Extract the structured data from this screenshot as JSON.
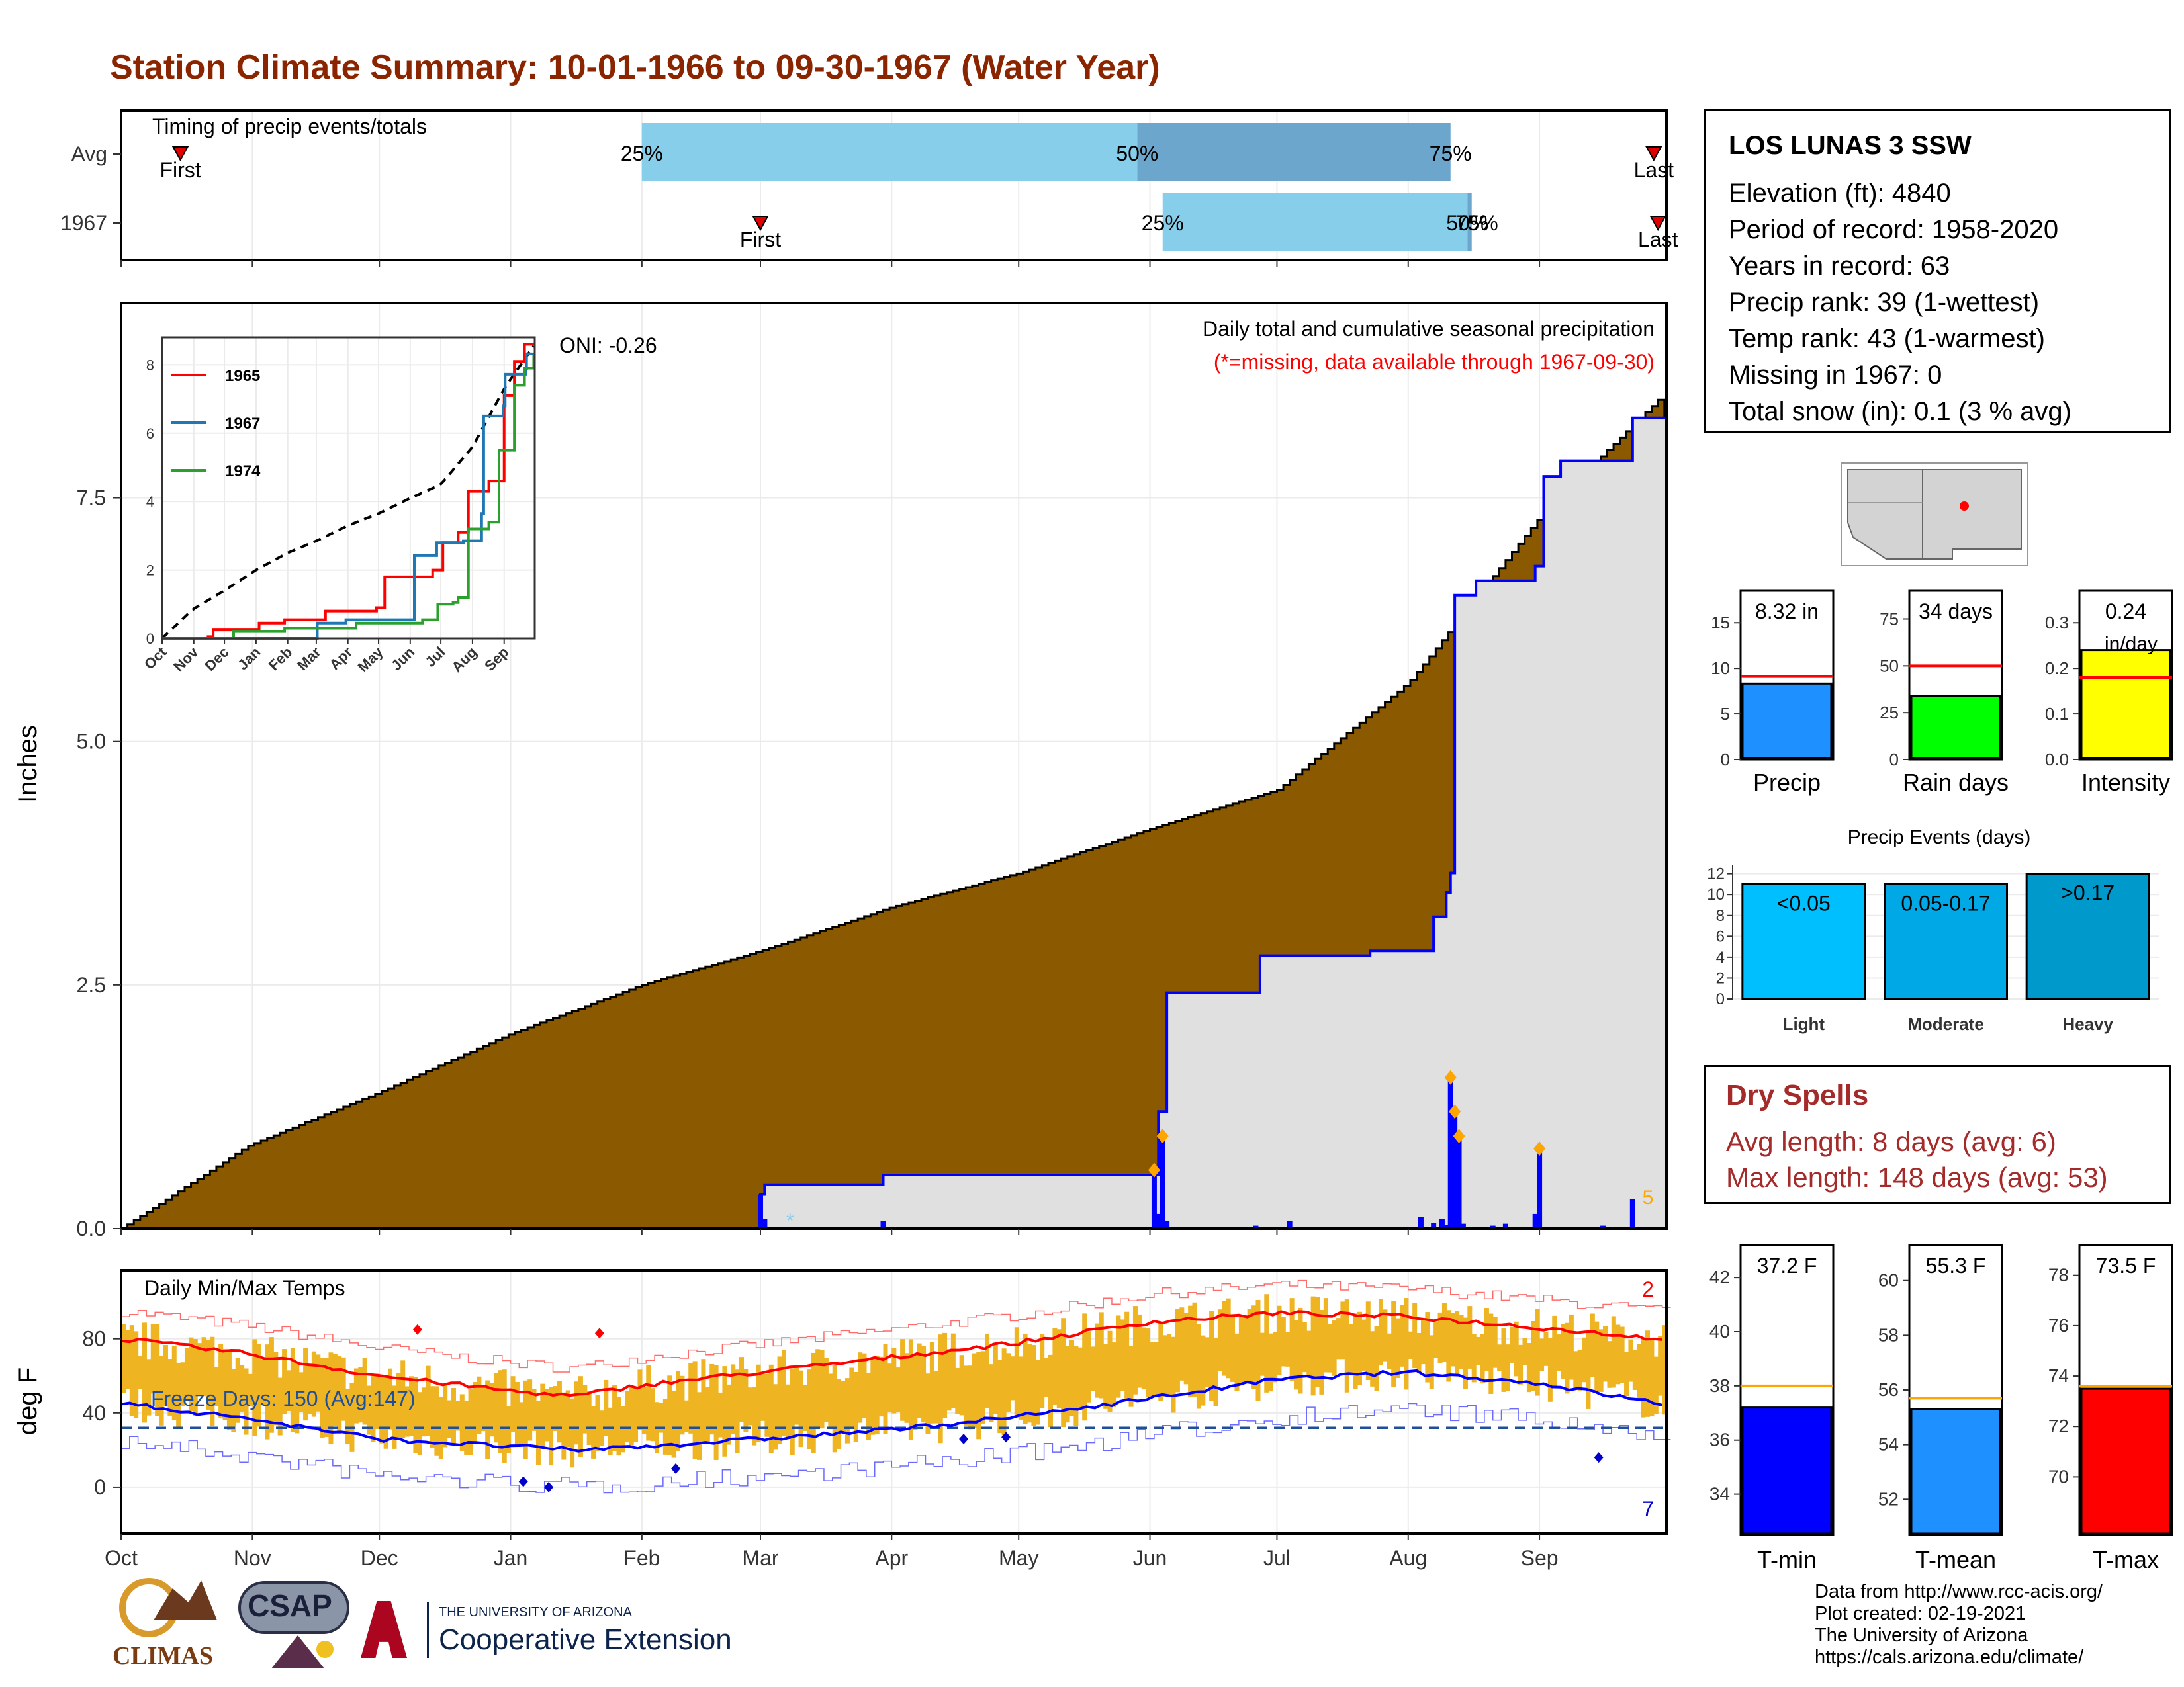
{
  "page": {
    "title": "Station Climate Summary: 10-01-1966 to 09-30-1967 (Water Year)"
  },
  "station": {
    "name": "LOS LUNAS 3 SSW",
    "lines": [
      "Elevation (ft): 4840",
      "Period of record: 1958-2020",
      "Years in record: 63",
      "Precip rank: 39 (1-wettest)",
      "Temp rank: 43 (1-warmest)",
      "Missing in 1967: 0",
      "Total snow (in): 0.1 (3 % avg)"
    ]
  },
  "dry_spells": {
    "title": "Dry Spells",
    "avg_length": "Avg length: 8 days (avg: 6)",
    "max_length": "Max length: 148 days (avg: 53)"
  },
  "credits": [
    "Data from http://www.rcc-acis.org/",
    "Plot created: 02-19-2021",
    "The University of Arizona",
    "https://cals.arizona.edu/climate/"
  ],
  "logos": {
    "climas": "CLIMAS",
    "csap": "CSAP",
    "ua_small": "THE UNIVERSITY OF ARIZONA",
    "ua_big": "Cooperative Extension"
  },
  "colors": {
    "precip_fill": "#8B5A00",
    "precip_line": "#0000FF",
    "gray_fill": "#E0E0E0",
    "light_blue": "#87CEEB",
    "steel_blue": "#6CA6CD",
    "temp_bar": "#EEB422",
    "red": "#FF0000",
    "blue": "#0000FF",
    "title_red": "#8B2500",
    "dry_red": "#A52A2A"
  },
  "chart_data": [
    {
      "name": "timing",
      "type": "bar",
      "title": "Timing of precip events/totals",
      "rows": [
        "Avg",
        "1967"
      ],
      "avg": {
        "first": "Oct 15",
        "p25": "Feb 1",
        "p50": "May 29",
        "p75": "Aug 11",
        "last": "Sep 27"
      },
      "y1967": {
        "first": "Mar 1",
        "p25": "Jun 4",
        "p50": "Aug 14",
        "p75": "Aug 15",
        "last": "Sep 28"
      },
      "pct_labels": {
        "avg": [
          "25%",
          "50%",
          "75%"
        ],
        "y1967": [
          "25%",
          "50%",
          "75%"
        ]
      },
      "first_label": "First",
      "last_label": "Last"
    },
    {
      "name": "cumulative_precip",
      "type": "area",
      "ylabel": "Inches",
      "ylim": [
        0,
        9.5
      ],
      "yticks": [
        "0.0",
        "2.5",
        "5.0",
        "7.5"
      ],
      "xticks": [
        "Oct",
        "Nov",
        "Dec",
        "Jan",
        "Feb",
        "Mar",
        "Apr",
        "May",
        "Jun",
        "Jul",
        "Aug",
        "Sep"
      ],
      "annotation_title": "Daily total and cumulative seasonal precipitation",
      "annotation_missing": "(*=missing, data available through 1967-09-30)",
      "oni": "ONI: -0.26",
      "corner_count": "5",
      "avg_cumulative": [
        [
          0,
          0
        ],
        [
          30,
          0.85
        ],
        [
          61,
          1.4
        ],
        [
          92,
          2.0
        ],
        [
          123,
          2.5
        ],
        [
          151,
          2.85
        ],
        [
          182,
          3.3
        ],
        [
          212,
          3.65
        ],
        [
          243,
          4.1
        ],
        [
          273,
          4.5
        ],
        [
          304,
          5.6
        ],
        [
          335,
          7.3
        ],
        [
          364,
          8.55
        ]
      ],
      "cumulative_1967": [
        [
          0,
          0
        ],
        [
          150,
          0
        ],
        [
          151,
          0.35
        ],
        [
          152,
          0.45
        ],
        [
          180,
          0.55
        ],
        [
          244,
          0.55
        ],
        [
          245,
          1.2
        ],
        [
          247,
          2.42
        ],
        [
          268,
          2.42
        ],
        [
          269,
          2.8
        ],
        [
          290,
          2.8
        ],
        [
          295,
          2.85
        ],
        [
          310,
          3.2
        ],
        [
          313,
          3.45
        ],
        [
          314,
          3.65
        ],
        [
          315,
          6.5
        ],
        [
          320,
          6.65
        ],
        [
          334,
          6.8
        ],
        [
          336,
          7.72
        ],
        [
          340,
          7.88
        ],
        [
          356,
          7.88
        ],
        [
          357,
          8.32
        ],
        [
          364,
          8.32
        ]
      ],
      "daily_1967": [
        [
          151,
          0.35
        ],
        [
          152,
          0.1
        ],
        [
          180,
          0.08
        ],
        [
          244,
          0.6
        ],
        [
          245,
          0.15
        ],
        [
          246,
          0.95
        ],
        [
          247,
          0.08
        ],
        [
          268,
          0.03
        ],
        [
          276,
          0.08
        ],
        [
          297,
          0.02
        ],
        [
          307,
          0.12
        ],
        [
          310,
          0.06
        ],
        [
          312,
          0.1
        ],
        [
          313,
          0.04
        ],
        [
          314,
          1.55
        ],
        [
          315,
          1.2
        ],
        [
          316,
          0.95
        ],
        [
          317,
          0.05
        ],
        [
          318,
          0.02
        ],
        [
          324,
          0.03
        ],
        [
          327,
          0.05
        ],
        [
          334,
          0.15
        ],
        [
          335,
          0.82
        ],
        [
          350,
          0.03
        ],
        [
          357,
          0.3
        ]
      ]
    },
    {
      "name": "cumulative_inset",
      "type": "line",
      "yticks": [
        "0",
        "2",
        "4",
        "6",
        "8"
      ],
      "xticks": [
        "Oct",
        "Nov",
        "Dec",
        "Jan",
        "Feb",
        "Mar",
        "Apr",
        "May",
        "Jun",
        "Jul",
        "Aug",
        "Sep"
      ],
      "series": [
        {
          "name": "1965",
          "color": "#FF0000",
          "points": [
            [
              0,
              0
            ],
            [
              45,
              0.05
            ],
            [
              50,
              0.25
            ],
            [
              95,
              0.45
            ],
            [
              120,
              0.55
            ],
            [
              160,
              0.8
            ],
            [
              210,
              0.9
            ],
            [
              218,
              1.8
            ],
            [
              265,
              2.0
            ],
            [
              275,
              2.8
            ],
            [
              290,
              3.1
            ],
            [
              300,
              4.3
            ],
            [
              320,
              4.6
            ],
            [
              335,
              7.1
            ],
            [
              345,
              8.1
            ],
            [
              355,
              8.6
            ],
            [
              364,
              8.6
            ]
          ]
        },
        {
          "name": "1967",
          "color": "#1F77B4",
          "points": [
            [
              0,
              0
            ],
            [
              150,
              0
            ],
            [
              152,
              0.45
            ],
            [
              180,
              0.55
            ],
            [
              244,
              0.55
            ],
            [
              247,
              2.42
            ],
            [
              268,
              2.42
            ],
            [
              269,
              2.8
            ],
            [
              295,
              2.85
            ],
            [
              313,
              3.65
            ],
            [
              315,
              6.5
            ],
            [
              334,
              6.8
            ],
            [
              336,
              7.72
            ],
            [
              356,
              7.88
            ],
            [
              357,
              8.32
            ],
            [
              364,
              8.32
            ]
          ]
        },
        {
          "name": "1974",
          "color": "#2CA02C",
          "points": [
            [
              0,
              0
            ],
            [
              60,
              0
            ],
            [
              70,
              0.2
            ],
            [
              120,
              0.3
            ],
            [
              190,
              0.45
            ],
            [
              255,
              0.55
            ],
            [
              270,
              1.0
            ],
            [
              285,
              1.05
            ],
            [
              290,
              1.2
            ],
            [
              300,
              3.2
            ],
            [
              320,
              3.4
            ],
            [
              330,
              5.5
            ],
            [
              345,
              7.4
            ],
            [
              355,
              7.9
            ],
            [
              364,
              8.3
            ]
          ]
        }
      ],
      "avg": [
        [
          0,
          0
        ],
        [
          30,
          0.85
        ],
        [
          61,
          1.4
        ],
        [
          92,
          2.0
        ],
        [
          123,
          2.5
        ],
        [
          151,
          2.85
        ],
        [
          182,
          3.3
        ],
        [
          212,
          3.65
        ],
        [
          243,
          4.1
        ],
        [
          273,
          4.5
        ],
        [
          304,
          5.6
        ],
        [
          335,
          7.3
        ],
        [
          364,
          8.55
        ]
      ]
    },
    {
      "name": "temps",
      "type": "bar",
      "title": "Daily Min/Max Temps",
      "ylabel": "deg F",
      "yticks": [
        "0",
        "40",
        "80"
      ],
      "xticks": [
        "Oct",
        "Nov",
        "Dec",
        "Jan",
        "Feb",
        "Mar",
        "Apr",
        "May",
        "Jun",
        "Jul",
        "Aug",
        "Sep"
      ],
      "freeze_label": "Freeze Days: 150 (Avg:147)",
      "freeze_line": 32,
      "max_record_count": "2",
      "min_record_count": "7",
      "avg_max": [
        [
          0,
          80
        ],
        [
          30,
          72
        ],
        [
          61,
          60
        ],
        [
          92,
          52
        ],
        [
          107,
          49
        ],
        [
          123,
          55
        ],
        [
          151,
          62
        ],
        [
          182,
          70
        ],
        [
          212,
          78
        ],
        [
          243,
          89
        ],
        [
          273,
          94
        ],
        [
          304,
          92
        ],
        [
          335,
          86
        ],
        [
          364,
          80
        ]
      ],
      "avg_min": [
        [
          0,
          45
        ],
        [
          30,
          37
        ],
        [
          61,
          26
        ],
        [
          92,
          22
        ],
        [
          107,
          20
        ],
        [
          123,
          22
        ],
        [
          151,
          26
        ],
        [
          182,
          31
        ],
        [
          212,
          38
        ],
        [
          243,
          48
        ],
        [
          273,
          58
        ],
        [
          304,
          62
        ],
        [
          335,
          56
        ],
        [
          364,
          45
        ]
      ]
    },
    {
      "name": "precip_bars",
      "type": "bar",
      "categories": [
        "Precip",
        "Rain days",
        "Intensity"
      ],
      "values": [
        8.32,
        34,
        0.24
      ],
      "avg": [
        9.1,
        50,
        0.18
      ],
      "value_labels": [
        "8.32 in",
        "34 days",
        "0.24"
      ],
      "value_unit_intensity": "in/day",
      "yticks": [
        [
          "0",
          "5",
          "10",
          "15"
        ],
        [
          "0",
          "25",
          "50",
          "75"
        ],
        [
          "0.0",
          "0.1",
          "0.2",
          "0.3"
        ]
      ],
      "ylims": [
        [
          0,
          18.5
        ],
        [
          0,
          90
        ],
        [
          0,
          0.37
        ]
      ],
      "colors": [
        "#1E90FF",
        "#00FF00",
        "#FFFF00"
      ]
    },
    {
      "name": "precip_events",
      "type": "bar",
      "title": "Precip Events (days)",
      "categories": [
        "Light",
        "Moderate",
        "Heavy"
      ],
      "values": [
        11,
        11,
        12
      ],
      "labels": [
        "<0.05",
        "0.05-0.17",
        ">0.17"
      ],
      "yticks": [
        "0",
        "2",
        "4",
        "6",
        "8",
        "10",
        "12"
      ],
      "ylim": [
        0,
        12.8
      ],
      "colors": [
        "#00BFFF",
        "#00A8E6",
        "#0099CC"
      ]
    },
    {
      "name": "temp_bars",
      "type": "bar",
      "categories": [
        "T-min",
        "T-mean",
        "T-max"
      ],
      "values": [
        37.2,
        55.3,
        73.5
      ],
      "avg": [
        38.0,
        55.7,
        73.6
      ],
      "value_labels": [
        "37.2 F",
        "55.3 F",
        "73.5 F"
      ],
      "yticks": [
        [
          "34",
          "36",
          "38",
          "40",
          "42"
        ],
        [
          "52",
          "54",
          "56",
          "58",
          "60"
        ],
        [
          "70",
          "72",
          "74",
          "76",
          "78"
        ]
      ],
      "ylims": [
        [
          32.5,
          43.2
        ],
        [
          50.7,
          61.3
        ],
        [
          67.7,
          79.2
        ]
      ],
      "colors": [
        "#0000FF",
        "#1E90FF",
        "#FF0000"
      ]
    }
  ]
}
